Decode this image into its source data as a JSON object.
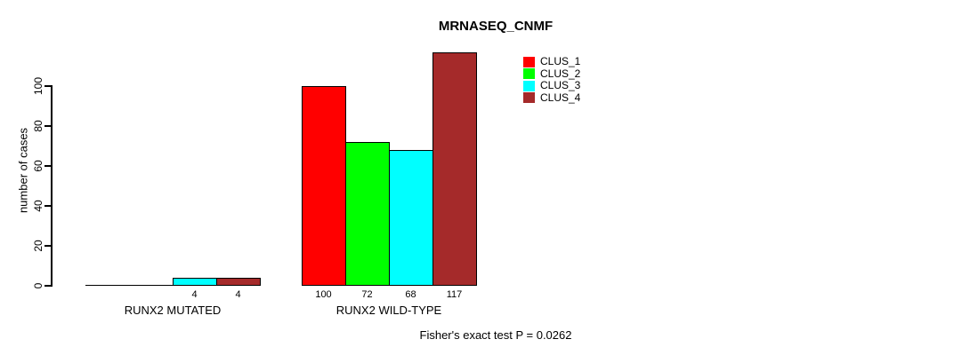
{
  "title": "MRNASEQ_CNMF",
  "footer": "Fisher's exact test P = 0.0262",
  "y_axis": {
    "label": "number of cases",
    "ticks": [
      0,
      20,
      40,
      60,
      80,
      100
    ]
  },
  "legend": {
    "items": [
      {
        "label": "CLUS_1",
        "color": "#FF0000"
      },
      {
        "label": "CLUS_2",
        "color": "#00FF00"
      },
      {
        "label": "CLUS_3",
        "color": "#00FFFF"
      },
      {
        "label": "CLUS_4",
        "color": "#A52A2A"
      }
    ]
  },
  "chart_data": {
    "type": "bar",
    "title": "MRNASEQ_CNMF",
    "xlabel": "",
    "ylabel": "number of cases",
    "ylim": [
      0,
      117
    ],
    "yticks": [
      0,
      20,
      40,
      60,
      80,
      100
    ],
    "grid": false,
    "legend_position": "top-right",
    "categories": [
      "RUNX2 MUTATED",
      "RUNX2 WILD-TYPE"
    ],
    "series": [
      {
        "name": "CLUS_1",
        "color": "#FF0000",
        "values": [
          0,
          100
        ]
      },
      {
        "name": "CLUS_2",
        "color": "#00FF00",
        "values": [
          0,
          72
        ]
      },
      {
        "name": "CLUS_3",
        "color": "#00FFFF",
        "values": [
          4,
          68
        ]
      },
      {
        "name": "CLUS_4",
        "color": "#A52A2A",
        "values": [
          4,
          117
        ]
      }
    ],
    "bar_value_labels": {
      "shown_when": "value > 0",
      "values_displayed": [
        4,
        4,
        100,
        72,
        68,
        117
      ]
    },
    "annotation": "Fisher's exact test P = 0.0262"
  }
}
